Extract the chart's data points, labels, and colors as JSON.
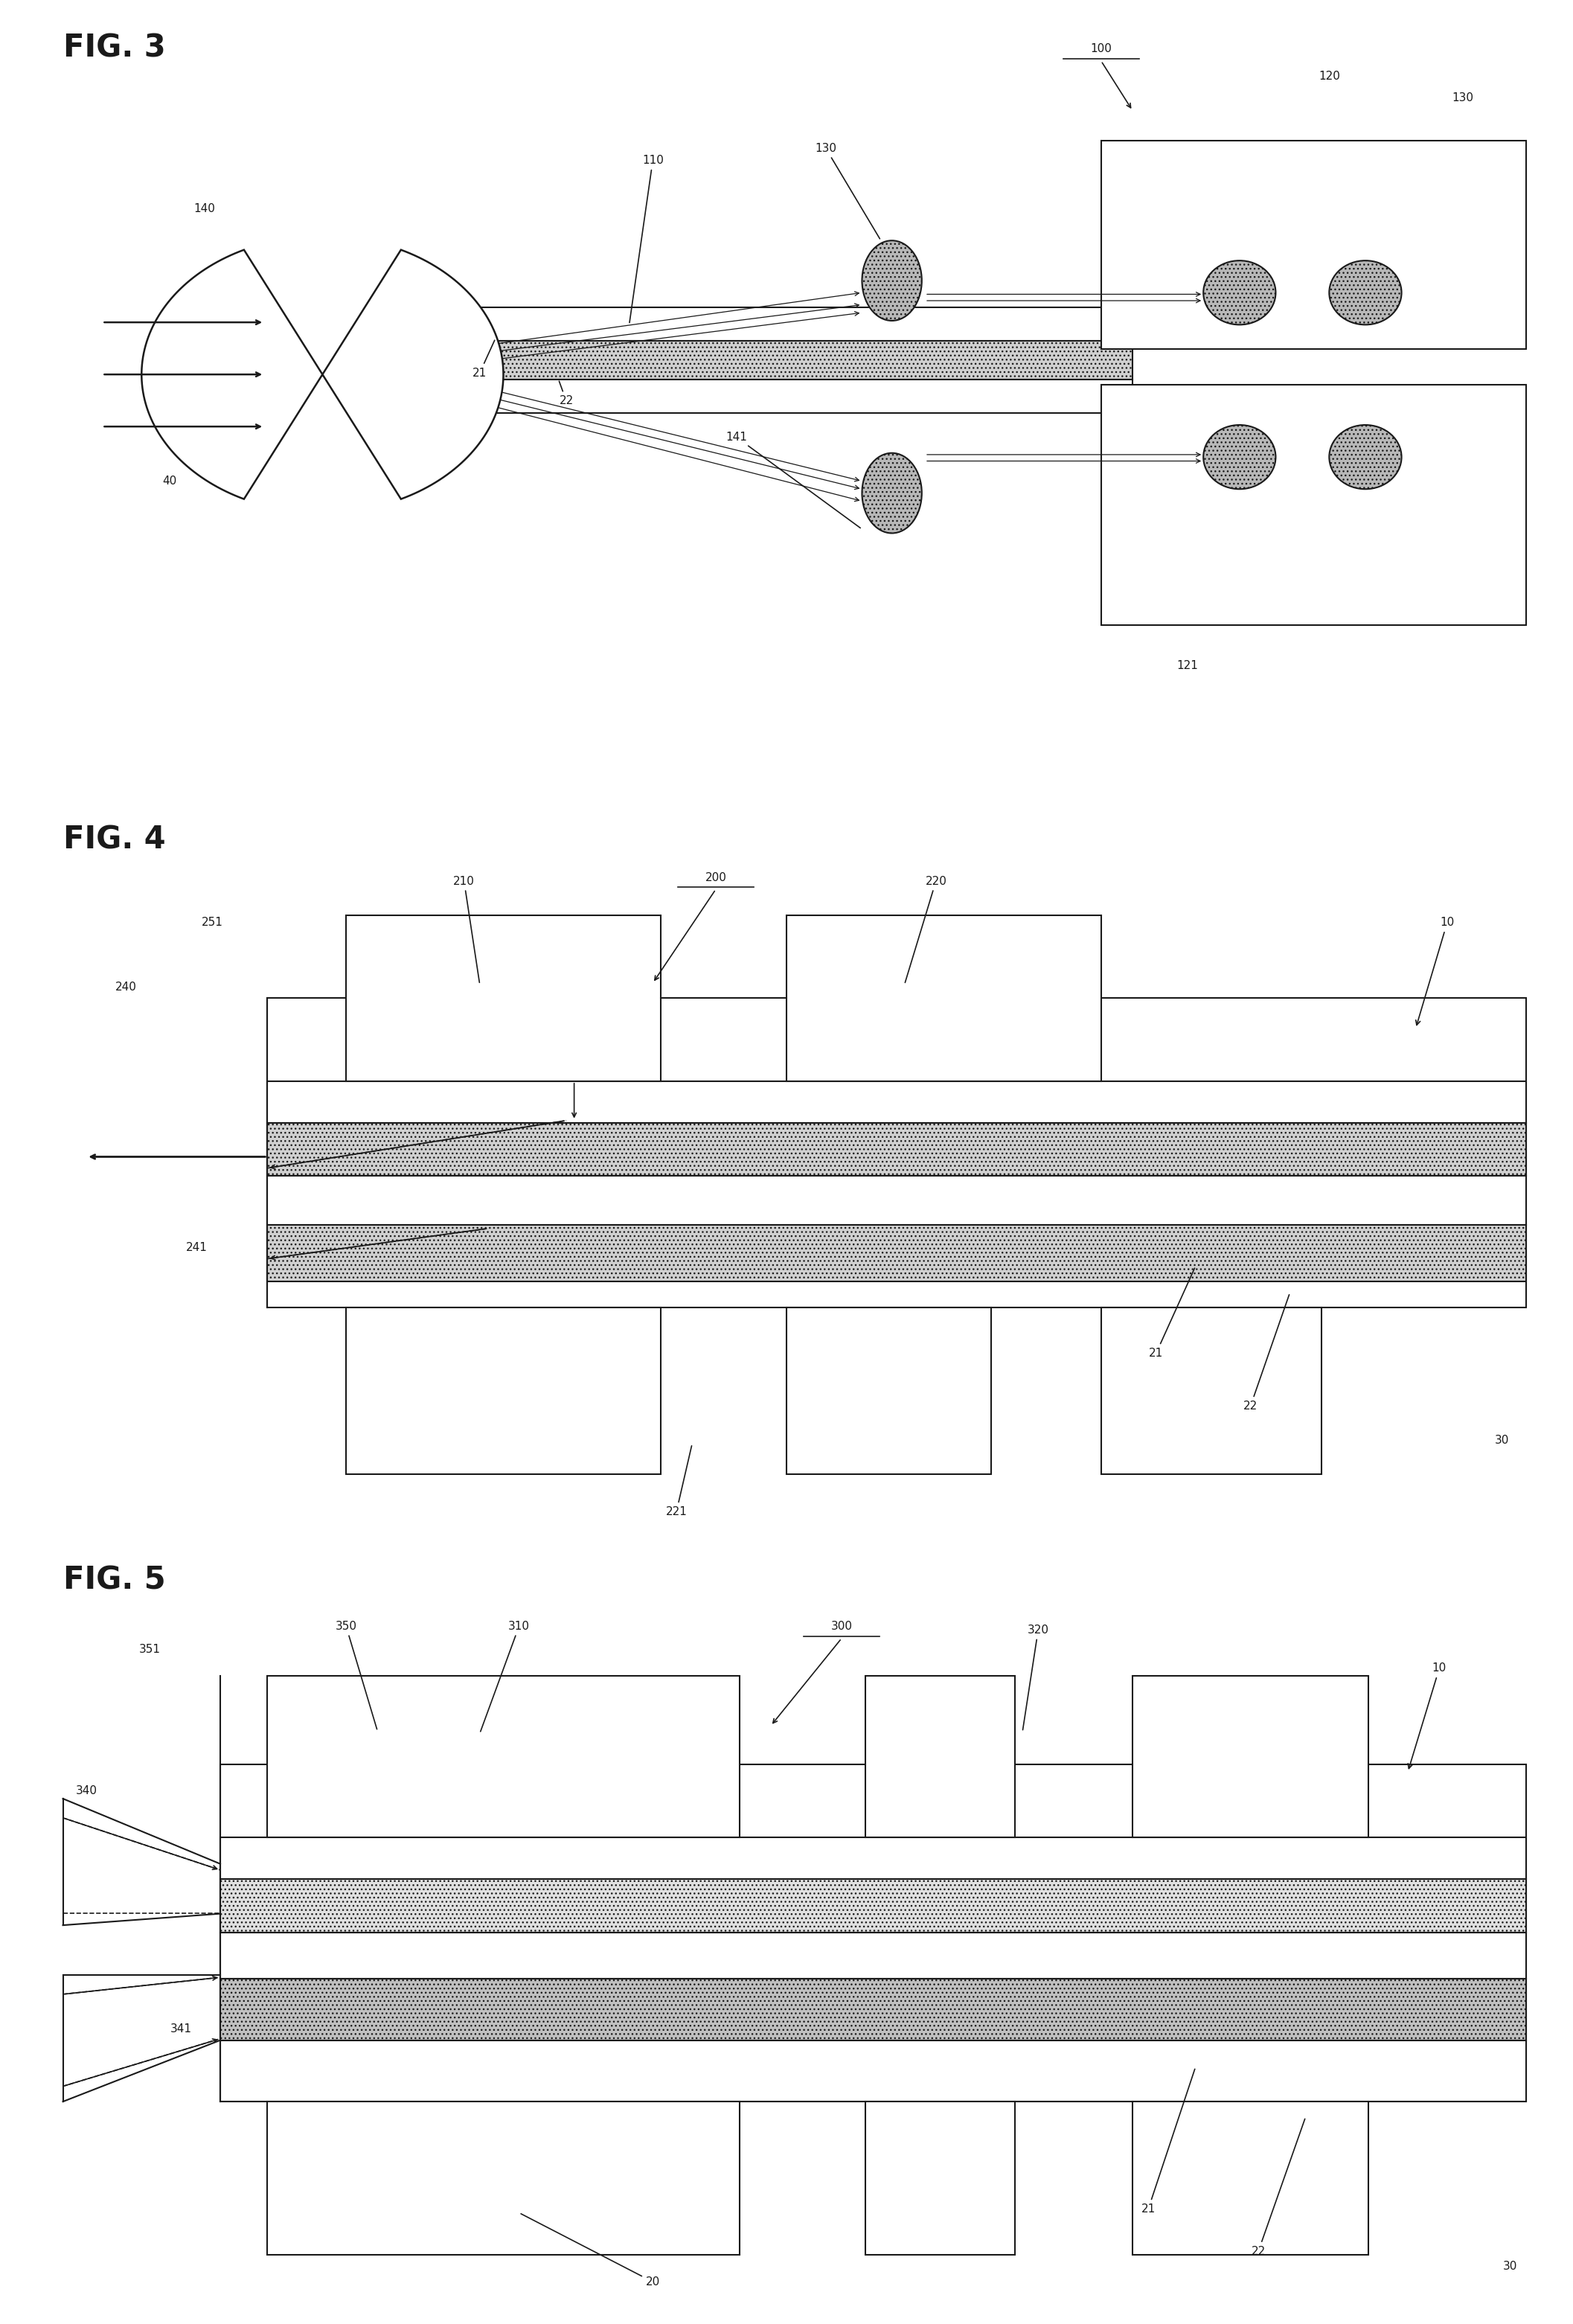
{
  "bg_color": "#ffffff",
  "line_color": "#1a1a1a",
  "fig3_title": "FIG. 3",
  "fig4_title": "FIG. 4",
  "fig5_title": "FIG. 5"
}
